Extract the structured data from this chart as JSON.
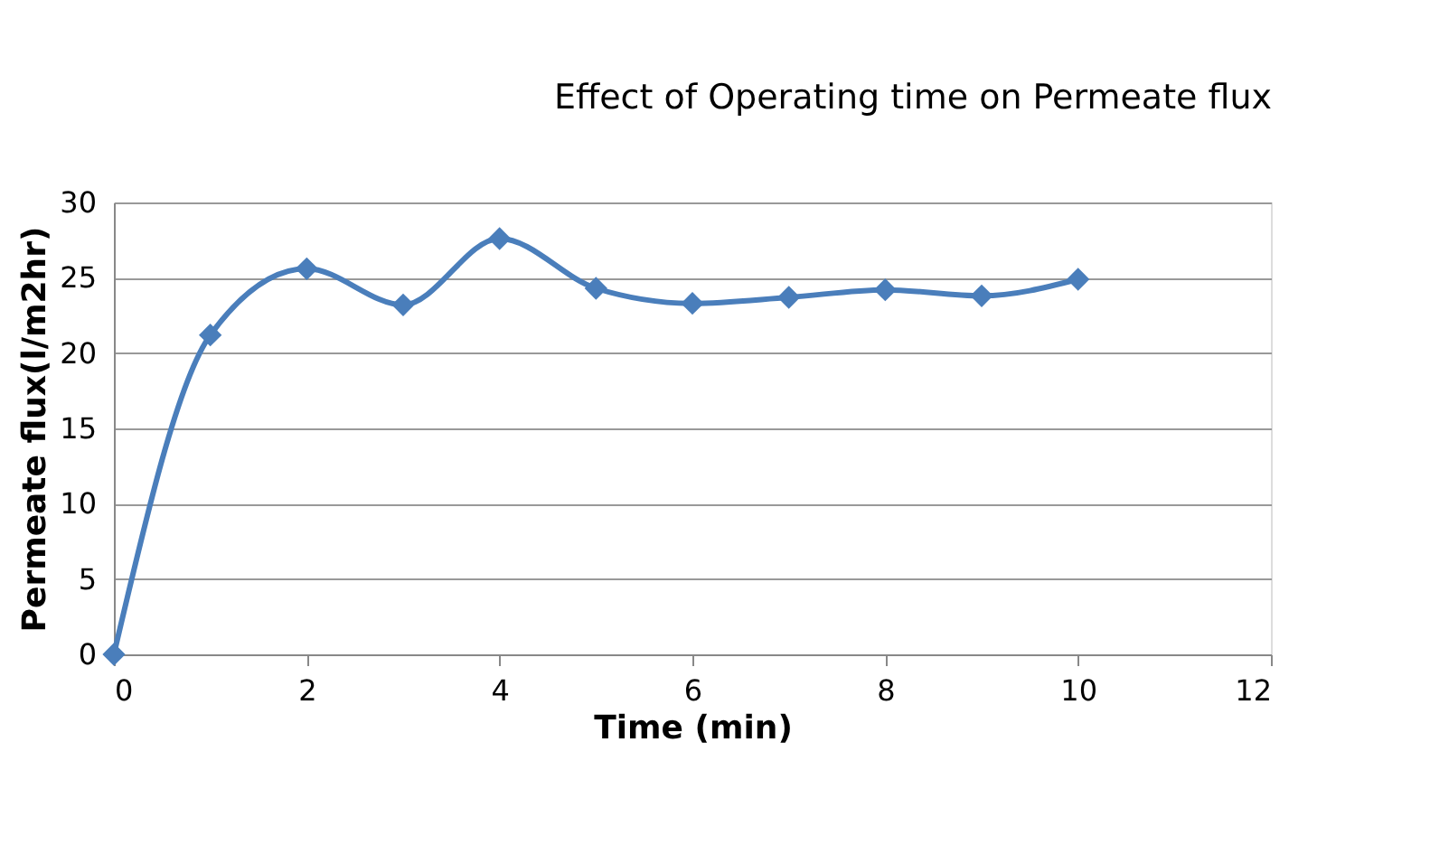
{
  "chart_data": {
    "type": "line",
    "title": "Effect of Operating time on Permeate flux",
    "xlabel": "Time (min)",
    "ylabel": "Permeate flux(l/m2hr)",
    "x": [
      0,
      1,
      2,
      3,
      4,
      5,
      6,
      7,
      8,
      9,
      10
    ],
    "series": [
      {
        "color": "#4a7ebb",
        "values": [
          0,
          21.2,
          25.6,
          23.2,
          27.6,
          24.3,
          23.3,
          23.7,
          24.2,
          23.8,
          24.9
        ]
      }
    ],
    "xlim": [
      0,
      12
    ],
    "xticks": [
      0,
      2,
      4,
      6,
      8,
      10,
      12
    ],
    "ylim": [
      0,
      30
    ],
    "yticks": [
      0,
      5,
      10,
      15,
      20,
      25,
      30
    ],
    "grid": "y",
    "marker": "diamond",
    "line_style": "solid"
  }
}
